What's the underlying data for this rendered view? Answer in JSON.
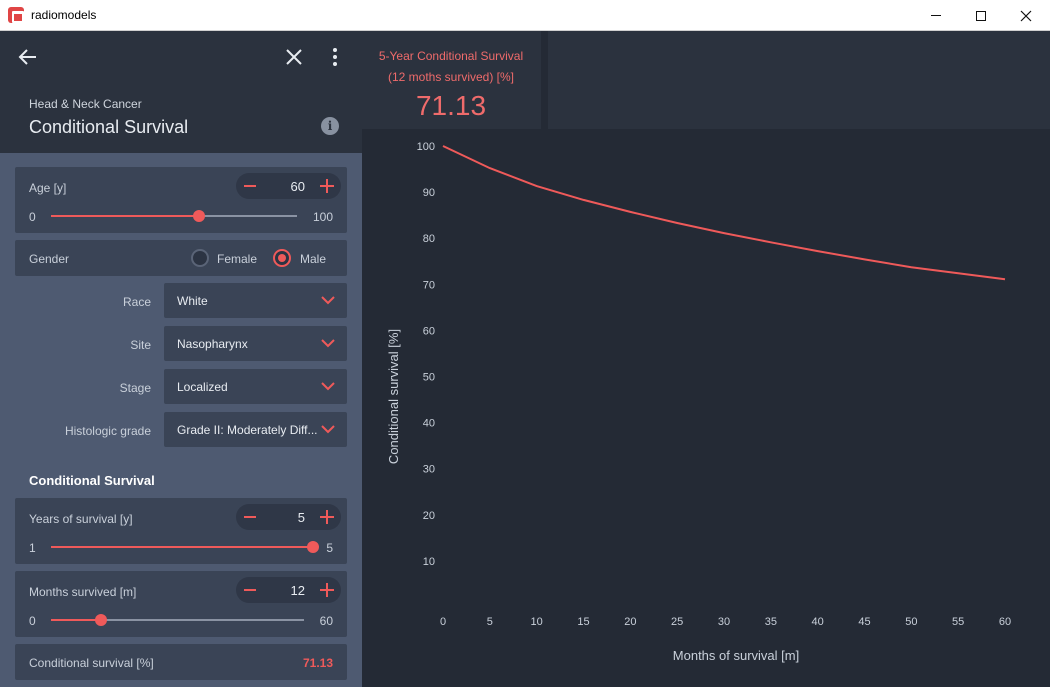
{
  "window": {
    "title": "radiomodels"
  },
  "header": {
    "category": "Head & Neck Cancer",
    "title": "Conditional Survival",
    "info_glyph": "i"
  },
  "age": {
    "label": "Age [y]",
    "value": "60",
    "min": "0",
    "max": "100",
    "fraction": 0.6
  },
  "gender": {
    "label": "Gender",
    "options": [
      "Female",
      "Male"
    ],
    "selected": "Male"
  },
  "race": {
    "label": "Race",
    "value": "White"
  },
  "site": {
    "label": "Site",
    "value": "Nasopharynx"
  },
  "stage": {
    "label": "Stage",
    "value": "Localized"
  },
  "grade": {
    "label": "Histologic grade",
    "value": "Grade II: Moderately Diff..."
  },
  "conditional": {
    "section_title": "Conditional Survival",
    "years": {
      "label": "Years of survival [y]",
      "value": "5",
      "min": "1",
      "max": "5",
      "fraction": 1.0
    },
    "months": {
      "label": "Months survived [m]",
      "value": "12",
      "min": "0",
      "max": "60",
      "fraction": 0.2
    },
    "result_label": "Conditional survival [%]",
    "result_value": "71.13"
  },
  "kpi": {
    "label_line1": "5-Year Conditional Survival",
    "label_line2": "(12 moths survived) [%]",
    "value": "71.13"
  },
  "colors": {
    "accent": "#ef5a5a",
    "panel": "#4e5a71",
    "card": "#3a4456",
    "dark": "#242a35"
  },
  "chart_data": {
    "type": "line",
    "xlabel": "Months of survival [m]",
    "ylabel": "Conditional survival [%]",
    "xlim": [
      0,
      60
    ],
    "ylim": [
      0,
      100
    ],
    "xticks": [
      0,
      5,
      10,
      15,
      20,
      25,
      30,
      35,
      40,
      45,
      50,
      55,
      60
    ],
    "yticks": [
      10,
      20,
      30,
      40,
      50,
      60,
      70,
      80,
      90,
      100
    ],
    "grid": false,
    "series": [
      {
        "x": [
          0,
          5,
          10,
          15,
          20,
          25,
          30,
          35,
          40,
          45,
          50,
          55,
          60
        ],
        "y": [
          100,
          95.2,
          91.3,
          88.3,
          85.7,
          83.3,
          81.1,
          79.1,
          77.2,
          75.4,
          73.7,
          72.4,
          71.1
        ]
      }
    ]
  }
}
